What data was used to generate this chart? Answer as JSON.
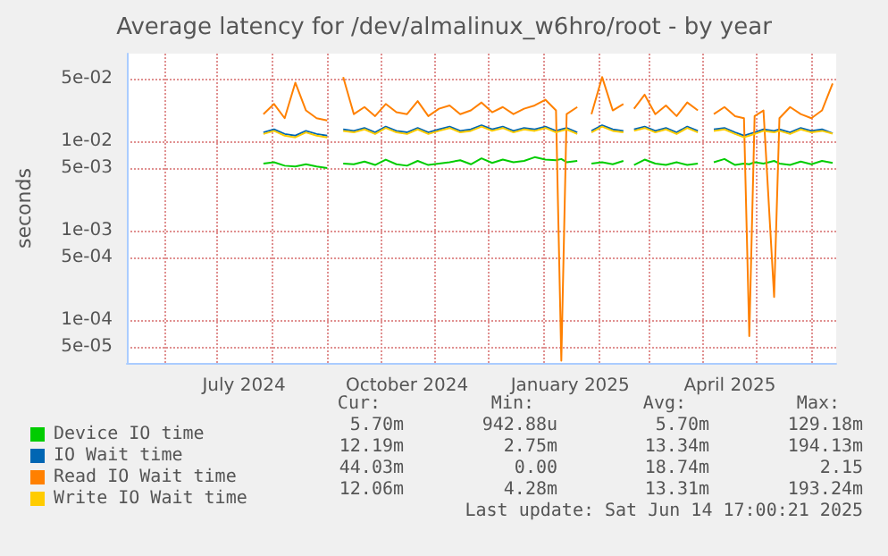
{
  "chart_data": {
    "type": "line",
    "title": "Average latency for /dev/almalinux_w6hro/root - by year",
    "ylabel": "seconds",
    "x": [
      "2024-07-27",
      "2024-08-02",
      "2024-08-08",
      "2024-08-14",
      "2024-08-20",
      "2024-08-26",
      "2024-09-01",
      "2024-09-07",
      "2024-09-10",
      "2024-09-16",
      "2024-09-22",
      "2024-09-28",
      "2024-10-04",
      "2024-10-10",
      "2024-10-16",
      "2024-10-22",
      "2024-10-28",
      "2024-11-03",
      "2024-11-09",
      "2024-11-15",
      "2024-11-21",
      "2024-11-27",
      "2024-12-03",
      "2024-12-09",
      "2024-12-15",
      "2024-12-21",
      "2024-12-27",
      "2025-01-02",
      "2025-01-08",
      "2025-01-11",
      "2025-01-14",
      "2025-01-20",
      "2025-01-26",
      "2025-01-28",
      "2025-02-03",
      "2025-02-09",
      "2025-02-15",
      "2025-02-19",
      "2025-02-21",
      "2025-02-27",
      "2025-03-05",
      "2025-03-11",
      "2025-03-17",
      "2025-03-23",
      "2025-03-29",
      "2025-04-04",
      "2025-04-07",
      "2025-04-13",
      "2025-04-19",
      "2025-04-24",
      "2025-04-27",
      "2025-04-30",
      "2025-05-05",
      "2025-05-11",
      "2025-05-14",
      "2025-05-20",
      "2025-05-26",
      "2025-06-01",
      "2025-06-07",
      "2025-06-13"
    ],
    "series": [
      {
        "name": "Device IO time",
        "color": "#00cc00",
        "values": [
          0.0056,
          0.0058,
          0.0053,
          0.0052,
          0.0055,
          0.0052,
          0.005,
          null,
          0.0056,
          0.0055,
          0.0059,
          0.0054,
          0.0062,
          0.0055,
          0.0053,
          0.006,
          0.0054,
          0.0056,
          0.0058,
          0.0061,
          0.0055,
          0.0064,
          0.0057,
          0.0062,
          0.0058,
          0.006,
          0.0066,
          0.0062,
          0.0061,
          0.0063,
          0.0058,
          0.006,
          null,
          0.0056,
          0.0058,
          0.0055,
          0.006,
          null,
          0.0054,
          0.0062,
          0.0056,
          0.0054,
          0.0058,
          0.0054,
          0.0056,
          null,
          0.0058,
          0.0063,
          0.0054,
          0.0056,
          0.0055,
          0.0058,
          0.0056,
          0.006,
          0.0056,
          0.0054,
          0.0059,
          0.0055,
          0.006,
          0.0057
        ]
      },
      {
        "name": "IO Wait time",
        "color": "#0066b3",
        "values": [
          0.0125,
          0.0135,
          0.012,
          0.0115,
          0.013,
          0.012,
          0.0115,
          null,
          0.0135,
          0.013,
          0.014,
          0.0125,
          0.0145,
          0.013,
          0.0125,
          0.014,
          0.0125,
          0.0135,
          0.0145,
          0.013,
          0.0135,
          0.015,
          0.0135,
          0.0145,
          0.013,
          0.014,
          0.0135,
          0.0145,
          0.013,
          0.0135,
          0.014,
          0.0125,
          null,
          0.013,
          0.015,
          0.0135,
          0.013,
          null,
          0.0135,
          0.0145,
          0.013,
          0.014,
          0.0125,
          0.0145,
          0.013,
          null,
          0.0135,
          0.014,
          0.0125,
          0.0115,
          0.012,
          0.0125,
          0.0135,
          0.013,
          0.0135,
          0.0125,
          0.014,
          0.013,
          0.0135,
          0.0122
        ]
      },
      {
        "name": "Read IO Wait time",
        "color": "#ff8000",
        "values": [
          0.02,
          0.026,
          0.018,
          0.045,
          0.022,
          0.018,
          0.017,
          null,
          0.052,
          0.02,
          0.024,
          0.019,
          0.026,
          0.021,
          0.02,
          0.028,
          0.019,
          0.023,
          0.025,
          0.02,
          0.022,
          0.027,
          0.021,
          0.024,
          0.02,
          0.023,
          0.025,
          0.029,
          0.022,
          3.5e-05,
          0.02,
          0.024,
          null,
          0.02,
          0.052,
          0.022,
          0.026,
          null,
          0.023,
          0.033,
          0.02,
          0.025,
          0.019,
          0.027,
          0.022,
          null,
          0.02,
          0.024,
          0.019,
          0.018,
          6.6e-05,
          0.019,
          0.022,
          0.00018,
          0.018,
          0.024,
          0.02,
          0.018,
          0.022,
          0.044
        ]
      },
      {
        "name": "Write IO Wait time",
        "color": "#ffcc00",
        "values": [
          0.012,
          0.013,
          0.0115,
          0.011,
          0.0125,
          0.0115,
          0.011,
          null,
          0.013,
          0.0125,
          0.0135,
          0.012,
          0.014,
          0.0125,
          0.012,
          0.0135,
          0.012,
          0.013,
          0.014,
          0.0125,
          0.013,
          0.0145,
          0.013,
          0.014,
          0.0125,
          0.0135,
          0.013,
          0.014,
          0.0125,
          0.013,
          0.0135,
          0.012,
          null,
          0.0125,
          0.0145,
          0.013,
          0.0125,
          null,
          0.013,
          0.014,
          0.0125,
          0.0135,
          0.012,
          0.014,
          0.0125,
          null,
          0.013,
          0.0135,
          0.012,
          0.011,
          0.0115,
          0.012,
          0.013,
          0.0125,
          0.013,
          0.012,
          0.0135,
          0.0125,
          0.013,
          0.0121
        ]
      }
    ],
    "log": "y",
    "ylim": [
      3.3e-05,
      0.095
    ],
    "yticks": [
      {
        "value": 5e-05,
        "label": "5e-05"
      },
      {
        "value": 0.0001,
        "label": "1e-04"
      },
      {
        "value": 0.0005,
        "label": "5e-04"
      },
      {
        "value": 0.001,
        "label": "1e-03"
      },
      {
        "value": 0.005,
        "label": "5e-03"
      },
      {
        "value": 0.01,
        "label": "1e-02"
      },
      {
        "value": 0.05,
        "label": "5e-02"
      }
    ],
    "xlim": [
      "2024-05-11",
      "2025-06-15"
    ],
    "xticks": [
      {
        "value": "2024-06-01",
        "label": null
      },
      {
        "value": "2024-07-01",
        "label": null
      },
      {
        "value": "2024-07-16",
        "label": "July 2024"
      },
      {
        "value": "2024-08-01",
        "label": null
      },
      {
        "value": "2024-09-01",
        "label": null
      },
      {
        "value": "2024-10-01",
        "label": null
      },
      {
        "value": "2024-10-16",
        "label": "October 2024"
      },
      {
        "value": "2024-11-01",
        "label": null
      },
      {
        "value": "2024-12-01",
        "label": null
      },
      {
        "value": "2025-01-01",
        "label": null
      },
      {
        "value": "2025-01-16",
        "label": "January 2025"
      },
      {
        "value": "2025-02-01",
        "label": null
      },
      {
        "value": "2025-03-01",
        "label": null
      },
      {
        "value": "2025-04-01",
        "label": null
      },
      {
        "value": "2025-04-16",
        "label": "April 2025"
      },
      {
        "value": "2025-05-01",
        "label": null
      },
      {
        "value": "2025-06-01",
        "label": null
      }
    ],
    "grid": true,
    "legend": "bottom left",
    "marker": "none",
    "line_style": "solid",
    "annotations": [
      "Cur:",
      "Min:",
      "Avg:",
      "Max:",
      "5.70m",
      "942.88u",
      "5.70m",
      "129.18m",
      "12.19m",
      "2.75m",
      "13.34m",
      "194.13m",
      "44.03m",
      "0.00",
      "18.74m",
      "2.15",
      "12.06m",
      "4.28m",
      "13.31m",
      "193.24m",
      "Last update: Sat Jun 14 17:00:21 2025"
    ]
  }
}
